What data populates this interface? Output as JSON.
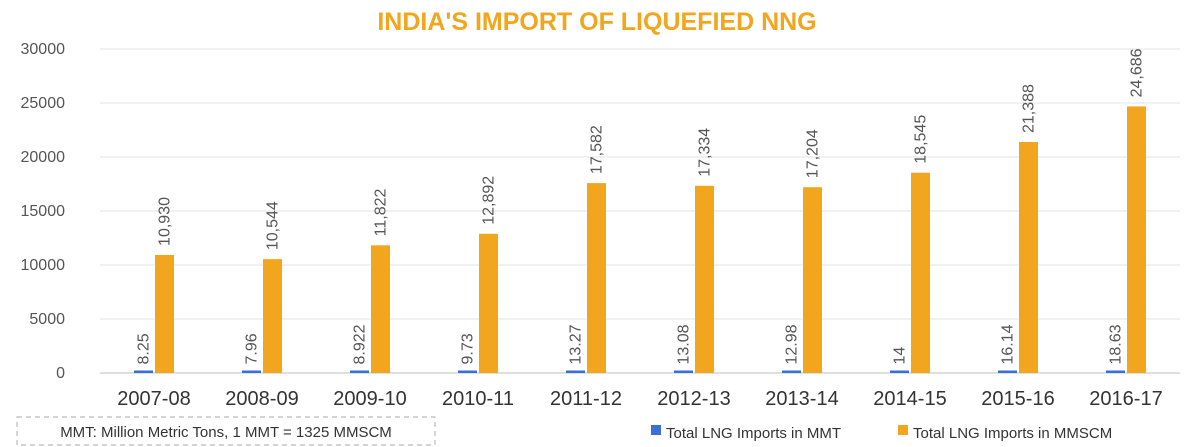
{
  "chart_data": {
    "type": "bar",
    "title": "INDIA'S IMPORT OF LIQUEFIED NNG",
    "categories": [
      "2007-08",
      "2008-09",
      "2009-10",
      "2010-11",
      "2011-12",
      "2012-13",
      "2013-14",
      "2014-15",
      "2015-16",
      "2016-17"
    ],
    "series": [
      {
        "name": "Total LNG Imports  in MMT",
        "color": "#3a6fd8",
        "values": [
          8.25,
          7.96,
          8.922,
          9.73,
          13.27,
          13.08,
          12.98,
          14,
          16.14,
          18.63
        ],
        "labels": [
          "8.25",
          "7.96",
          "8.922",
          "9.73",
          "13.27",
          "13.08",
          "12.98",
          "14",
          "16.14",
          "18.63"
        ]
      },
      {
        "name": "Total LNG Imports in MMSCM",
        "color": "#f2a61d",
        "values": [
          10930,
          10544,
          11822,
          12892,
          17582,
          17334,
          17204,
          18545,
          21388,
          24686
        ],
        "labels": [
          "10,930",
          "10,544",
          "11,822",
          "12,892",
          "17,582",
          "17,334",
          "17,204",
          "18,545",
          "21,388",
          "24,686"
        ]
      }
    ],
    "ylim": [
      0,
      30000
    ],
    "yticks": [
      0,
      5000,
      10000,
      15000,
      20000,
      25000,
      30000
    ],
    "grid": true,
    "legend_position": "bottom-right",
    "note": "MMT: Million Metric Tons, 1 MMT = 1325 MMSCM"
  }
}
